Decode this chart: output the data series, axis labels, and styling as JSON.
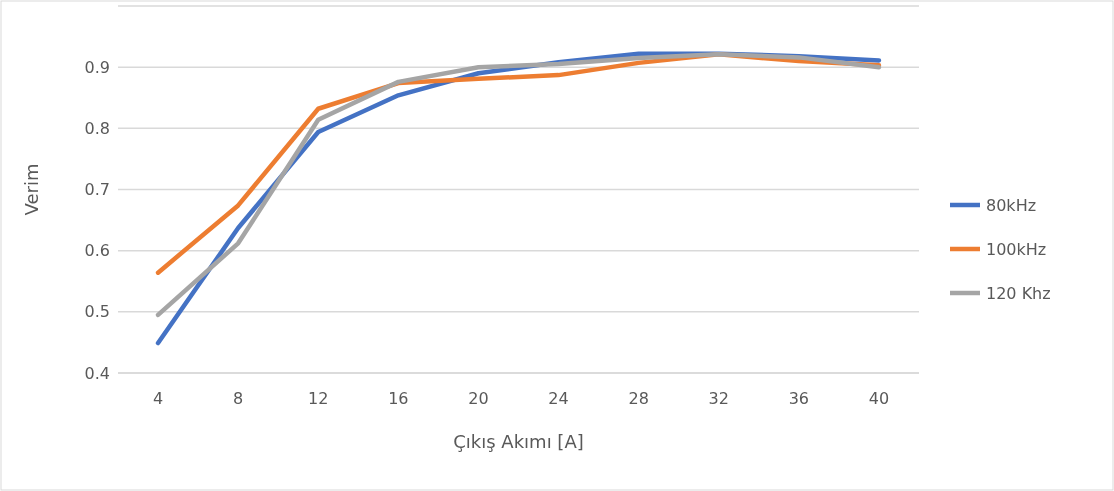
{
  "chart_data": {
    "type": "line",
    "xlabel": "Çıkış Akımı [A]",
    "ylabel": "Verim",
    "categories": [
      "4",
      "8",
      "12",
      "16",
      "20",
      "24",
      "28",
      "32",
      "36",
      "40"
    ],
    "series": [
      {
        "name": "80kHz",
        "color": "#4472c4",
        "values": [
          0.449,
          0.637,
          0.794,
          0.854,
          0.89,
          0.908,
          0.922,
          0.922,
          0.918,
          0.911
        ]
      },
      {
        "name": "100kHz",
        "color": "#ed7d31",
        "values": [
          0.564,
          0.674,
          0.832,
          0.874,
          0.881,
          0.887,
          0.907,
          0.921,
          0.91,
          0.903
        ]
      },
      {
        "name": "120 Khz",
        "color": "#a5a5a5",
        "values": [
          0.495,
          0.612,
          0.814,
          0.876,
          0.9,
          0.905,
          0.915,
          0.921,
          0.916,
          0.9
        ]
      }
    ],
    "ylim": [
      0.4,
      1.0
    ],
    "yticks": [
      0.4,
      0.5,
      0.6,
      0.7,
      0.8,
      0.9,
      {
        "value": 1,
        "label": null
      }
    ],
    "grid": "y",
    "legend": "right",
    "marker": "none",
    "line_style": "solid"
  }
}
